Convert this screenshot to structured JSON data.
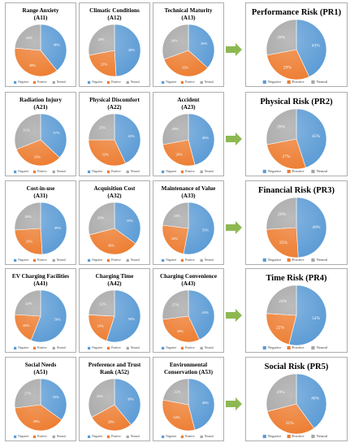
{
  "legend_labels": [
    "Negative",
    "Positive",
    "Neutral"
  ],
  "colors": {
    "negative": "#5B9BD5",
    "positive": "#ED7D31",
    "neutral": "#A5A5A5",
    "arrow": "#8DB851",
    "border": "#9a9a9a"
  },
  "chart_data": [
    {
      "type": "pie",
      "title": "Range Anxiety",
      "subtitle": "(A11)",
      "categories": [
        "Negative",
        "Positive",
        "Neutral"
      ],
      "values": [
        40,
        38,
        24
      ]
    },
    {
      "type": "pie",
      "title": "Climatic Conditions",
      "subtitle": "(A12)",
      "categories": [
        "Negative",
        "Positive",
        "Neutral"
      ],
      "values": [
        49,
        23,
        28
      ]
    },
    {
      "type": "pie",
      "title": "Technical Maturity",
      "subtitle": "(A13)",
      "categories": [
        "Negative",
        "Positive",
        "Neutral"
      ],
      "values": [
        36,
        32,
        30
      ]
    },
    {
      "type": "pie",
      "title": "Performance Risk (PR1)",
      "subtitle": "",
      "categories": [
        "Negative",
        "Positive",
        "Neutral"
      ],
      "values": [
        43,
        29,
        28
      ]
    },
    {
      "type": "pie",
      "title": "Radiation Injury",
      "subtitle": "(A21)",
      "categories": [
        "Negative",
        "Positive",
        "Neutral"
      ],
      "values": [
        37,
        32,
        31
      ]
    },
    {
      "type": "pie",
      "title": "Physical Discomfort",
      "subtitle": "(A22)",
      "categories": [
        "Negative",
        "Positive",
        "Neutral"
      ],
      "values": [
        43,
        32,
        25
      ]
    },
    {
      "type": "pie",
      "title": "Accident",
      "subtitle": "(A23)",
      "categories": [
        "Negative",
        "Positive",
        "Neutral"
      ],
      "values": [
        46,
        26,
        28
      ]
    },
    {
      "type": "pie",
      "title": "Physical Risk (PR2)",
      "subtitle": "",
      "categories": [
        "Negative",
        "Positive",
        "Neutral"
      ],
      "values": [
        45,
        27,
        28
      ]
    },
    {
      "type": "pie",
      "title": "Cost-in-use",
      "subtitle": "(A31)",
      "categories": [
        "Negative",
        "Positive",
        "Neutral"
      ],
      "values": [
        49,
        25,
        26
      ]
    },
    {
      "type": "pie",
      "title": "Acquisition Cost",
      "subtitle": "(A32)",
      "categories": [
        "Negative",
        "Positive",
        "Neutral"
      ],
      "values": [
        35,
        36,
        29
      ]
    },
    {
      "type": "pie",
      "title": "Maintenance of Value",
      "subtitle": "(A33)",
      "categories": [
        "Negative",
        "Positive",
        "Neutral"
      ],
      "values": [
        53,
        24,
        23
      ]
    },
    {
      "type": "pie",
      "title": "Financial Risk (PR3)",
      "subtitle": "",
      "categories": [
        "Negative",
        "Positive",
        "Neutral"
      ],
      "values": [
        49,
        25,
        26
      ]
    },
    {
      "type": "pie",
      "title": "EV Charging Facilities",
      "subtitle": "(A41)",
      "categories": [
        "Negative",
        "Positive",
        "Neutral"
      ],
      "values": [
        56,
        20,
        24
      ]
    },
    {
      "type": "pie",
      "title": "Charging Time",
      "subtitle": "(A42)",
      "categories": [
        "Negative",
        "Positive",
        "Neutral"
      ],
      "values": [
        50,
        19,
        22
      ]
    },
    {
      "type": "pie",
      "title": "Charging Convenience",
      "subtitle": "(A43)",
      "categories": [
        "Negative",
        "Positive",
        "Neutral"
      ],
      "values": [
        43,
        30,
        27
      ]
    },
    {
      "type": "pie",
      "title": "Time Risk (PR4)",
      "subtitle": "",
      "categories": [
        "Negative",
        "Positive",
        "Neutral"
      ],
      "values": [
        54,
        22,
        24
      ]
    },
    {
      "type": "pie",
      "title": "Social Needs",
      "subtitle": "(A51)",
      "categories": [
        "Negative",
        "Positive",
        "Neutral"
      ],
      "values": [
        35,
        38,
        27
      ]
    },
    {
      "type": "pie",
      "title": "Preference and Trust",
      "subtitle": "Rank (A52)",
      "categories": [
        "Negative",
        "Positive",
        "Neutral"
      ],
      "values": [
        39,
        28,
        33
      ]
    },
    {
      "type": "pie",
      "title": "Environmental",
      "subtitle": "Conservation (A53)",
      "categories": [
        "Negative",
        "Positive",
        "Neutral"
      ],
      "values": [
        46,
        32,
        22
      ]
    },
    {
      "type": "pie",
      "title": "Social Risk (PR5)",
      "subtitle": "",
      "categories": [
        "Negative",
        "Positive",
        "Neutral"
      ],
      "values": [
        40,
        31,
        29
      ]
    }
  ]
}
